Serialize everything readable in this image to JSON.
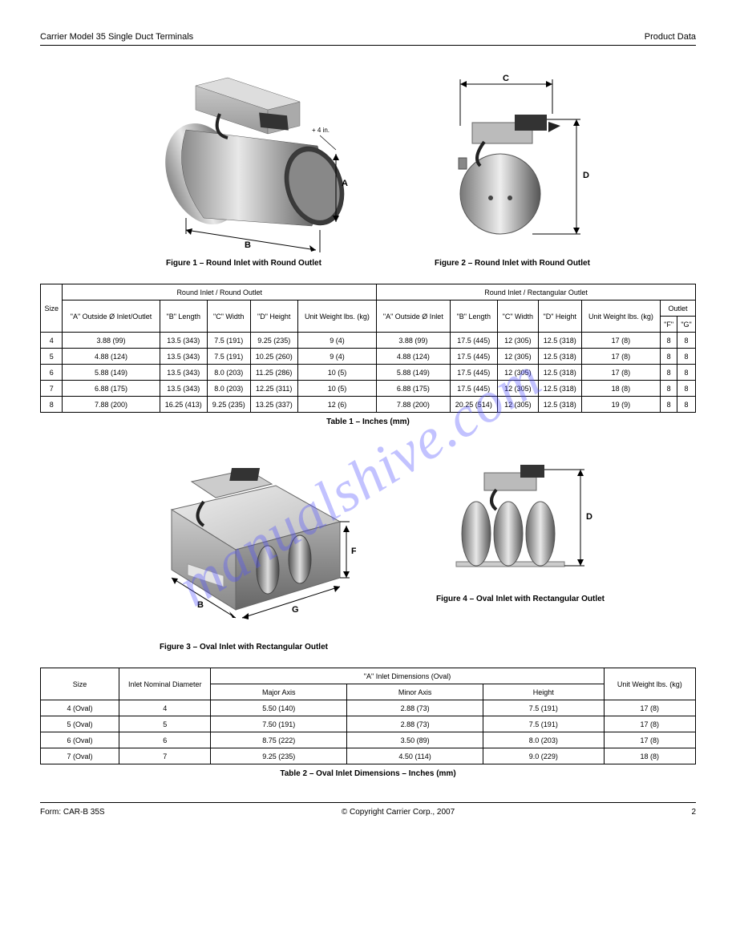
{
  "header": {
    "doc_title": "Carrier Model 35 Single Duct Terminals",
    "section": "Product Data"
  },
  "watermark": "manualshive.com",
  "figure1": {
    "title": "Figure 1 – Round Inlet with Round Outlet",
    "labels": {
      "a": "A",
      "b": "B",
      "plus": "+ 4 in."
    }
  },
  "figure2": {
    "title": "Figure 2 – Round Inlet with Round Outlet",
    "labels": {
      "c": "C",
      "d": "D"
    }
  },
  "table1": {
    "title": "Table 1 – Inches (mm)",
    "head": {
      "col_size": "Size",
      "group_round": "Round Inlet / Round Outlet",
      "group_rect": "Round Inlet / Rectangular Outlet",
      "a_round": "\"A\" Outside Ø Inlet/Outlet",
      "b_round": "\"B\" Length",
      "c_round": "\"C\" Width",
      "d_round": "\"D\" Height",
      "wt_round": "Unit Weight lbs. (kg)",
      "a_rect": "\"A\" Outside Ø Inlet",
      "b_rect": "\"B\" Length",
      "c_rect": "\"C\" Width",
      "d_rect": "\"D\" Height",
      "wt_rect": "Unit Weight lbs. (kg)",
      "f": "\"F\"",
      "g": "\"G\""
    },
    "rows": [
      {
        "size": "4",
        "a1": "3.88 (99)",
        "b1": "13.5 (343)",
        "c1": "7.5 (191)",
        "d1": "9.25 (235)",
        "w1": "9 (4)",
        "a2": "3.88 (99)",
        "b2": "17.5 (445)",
        "c2": "12 (305)",
        "d2": "12.5 (318)",
        "w2": "17 (8)",
        "f": "8",
        "g": "8"
      },
      {
        "size": "5",
        "a1": "4.88 (124)",
        "b1": "13.5 (343)",
        "c1": "7.5 (191)",
        "d1": "10.25 (260)",
        "w1": "9 (4)",
        "a2": "4.88 (124)",
        "b2": "17.5 (445)",
        "c2": "12 (305)",
        "d2": "12.5 (318)",
        "w2": "17 (8)",
        "f": "8",
        "g": "8"
      },
      {
        "size": "6",
        "a1": "5.88 (149)",
        "b1": "13.5 (343)",
        "c1": "8.0 (203)",
        "d1": "11.25 (286)",
        "w1": "10 (5)",
        "a2": "5.88 (149)",
        "b2": "17.5 (445)",
        "c2": "12 (305)",
        "d2": "12.5 (318)",
        "w2": "17 (8)",
        "f": "8",
        "g": "8"
      },
      {
        "size": "7",
        "a1": "6.88 (175)",
        "b1": "13.5 (343)",
        "c1": "8.0 (203)",
        "d1": "12.25 (311)",
        "w1": "10 (5)",
        "a2": "6.88 (175)",
        "b2": "17.5 (445)",
        "c2": "12 (305)",
        "d2": "12.5 (318)",
        "w2": "18 (8)",
        "f": "8",
        "g": "8"
      },
      {
        "size": "8",
        "a1": "7.88 (200)",
        "b1": "16.25 (413)",
        "c1": "9.25 (235)",
        "d1": "13.25 (337)",
        "w1": "12 (6)",
        "a2": "7.88 (200)",
        "b2": "20.25 (514)",
        "c2": "12 (305)",
        "d2": "12.5 (318)",
        "w2": "19 (9)",
        "f": "8",
        "g": "8"
      }
    ]
  },
  "figure3": {
    "title": "Figure 3 – Oval Inlet with Rectangular Outlet",
    "labels": {
      "b": "B",
      "f": "F",
      "g": "G"
    }
  },
  "figure4": {
    "title": "Figure 4 – Oval Inlet with Rectangular Outlet",
    "labels": {
      "d": "D"
    }
  },
  "table2": {
    "title": "Table 2 – Oval Inlet Dimensions  – Inches (mm)",
    "head": {
      "size": "Size",
      "inlet": "Inlet Nominal Diameter",
      "group": "\"A\" Inlet Dimensions (Oval)",
      "major": "Major Axis",
      "minor": "Minor Axis",
      "height": "Height",
      "wt": "Unit Weight lbs. (kg)"
    },
    "rows": [
      {
        "size": "4 (Oval)",
        "inlet": "4",
        "maj": "5.50 (140)",
        "min": "2.88 (73)",
        "h": "7.5 (191)",
        "w": "17 (8)"
      },
      {
        "size": "5 (Oval)",
        "inlet": "5",
        "maj": "7.50 (191)",
        "min": "2.88 (73)",
        "h": "7.5 (191)",
        "w": "17 (8)"
      },
      {
        "size": "6 (Oval)",
        "inlet": "6",
        "maj": "8.75 (222)",
        "min": "3.50 (89)",
        "h": "8.0 (203)",
        "w": "17 (8)"
      },
      {
        "size": "7 (Oval)",
        "inlet": "7",
        "maj": "9.25 (235)",
        "min": "4.50 (114)",
        "h": "9.0 (229)",
        "w": "18 (8)"
      }
    ]
  },
  "footer": {
    "form": "Form: CAR-B 35S",
    "copyright": "© Copyright Carrier Corp., 2007",
    "page": "2"
  }
}
